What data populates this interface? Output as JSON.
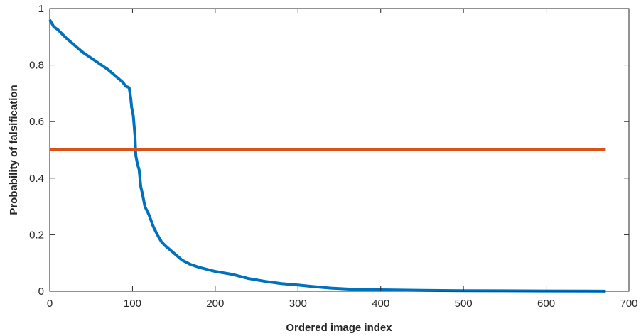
{
  "chart_data": {
    "type": "line",
    "title": "",
    "xlabel": "Ordered image index",
    "ylabel": "Probability of falsification",
    "xlim": [
      0,
      700
    ],
    "ylim": [
      0,
      1
    ],
    "xticks": [
      0,
      100,
      200,
      300,
      400,
      500,
      600,
      700
    ],
    "yticks": [
      0,
      0.2,
      0.4,
      0.6,
      0.8,
      1
    ],
    "grid": false,
    "series": [
      {
        "color": "#0072BD",
        "x": [
          0,
          2,
          5,
          10,
          15,
          20,
          30,
          40,
          50,
          60,
          70,
          80,
          88,
          92,
          96,
          98,
          99,
          101,
          103,
          104,
          106,
          108,
          110,
          112,
          115,
          120,
          125,
          130,
          135,
          140,
          150,
          160,
          170,
          180,
          200,
          220,
          240,
          260,
          280,
          300,
          320,
          340,
          360,
          380,
          400,
          450,
          500,
          550,
          600,
          650,
          672
        ],
        "y": [
          0.96,
          0.95,
          0.935,
          0.925,
          0.91,
          0.895,
          0.87,
          0.845,
          0.825,
          0.805,
          0.785,
          0.76,
          0.74,
          0.725,
          0.72,
          0.68,
          0.65,
          0.62,
          0.55,
          0.48,
          0.45,
          0.43,
          0.37,
          0.345,
          0.3,
          0.27,
          0.23,
          0.2,
          0.175,
          0.16,
          0.135,
          0.11,
          0.095,
          0.085,
          0.07,
          0.06,
          0.045,
          0.035,
          0.027,
          0.022,
          0.016,
          0.011,
          0.008,
          0.006,
          0.005,
          0.003,
          0.002,
          0.0015,
          0.001,
          0.0005,
          0.0002
        ]
      },
      {
        "color": "#D95319",
        "x": [
          0,
          672
        ],
        "y": [
          0.5,
          0.5
        ]
      }
    ]
  }
}
